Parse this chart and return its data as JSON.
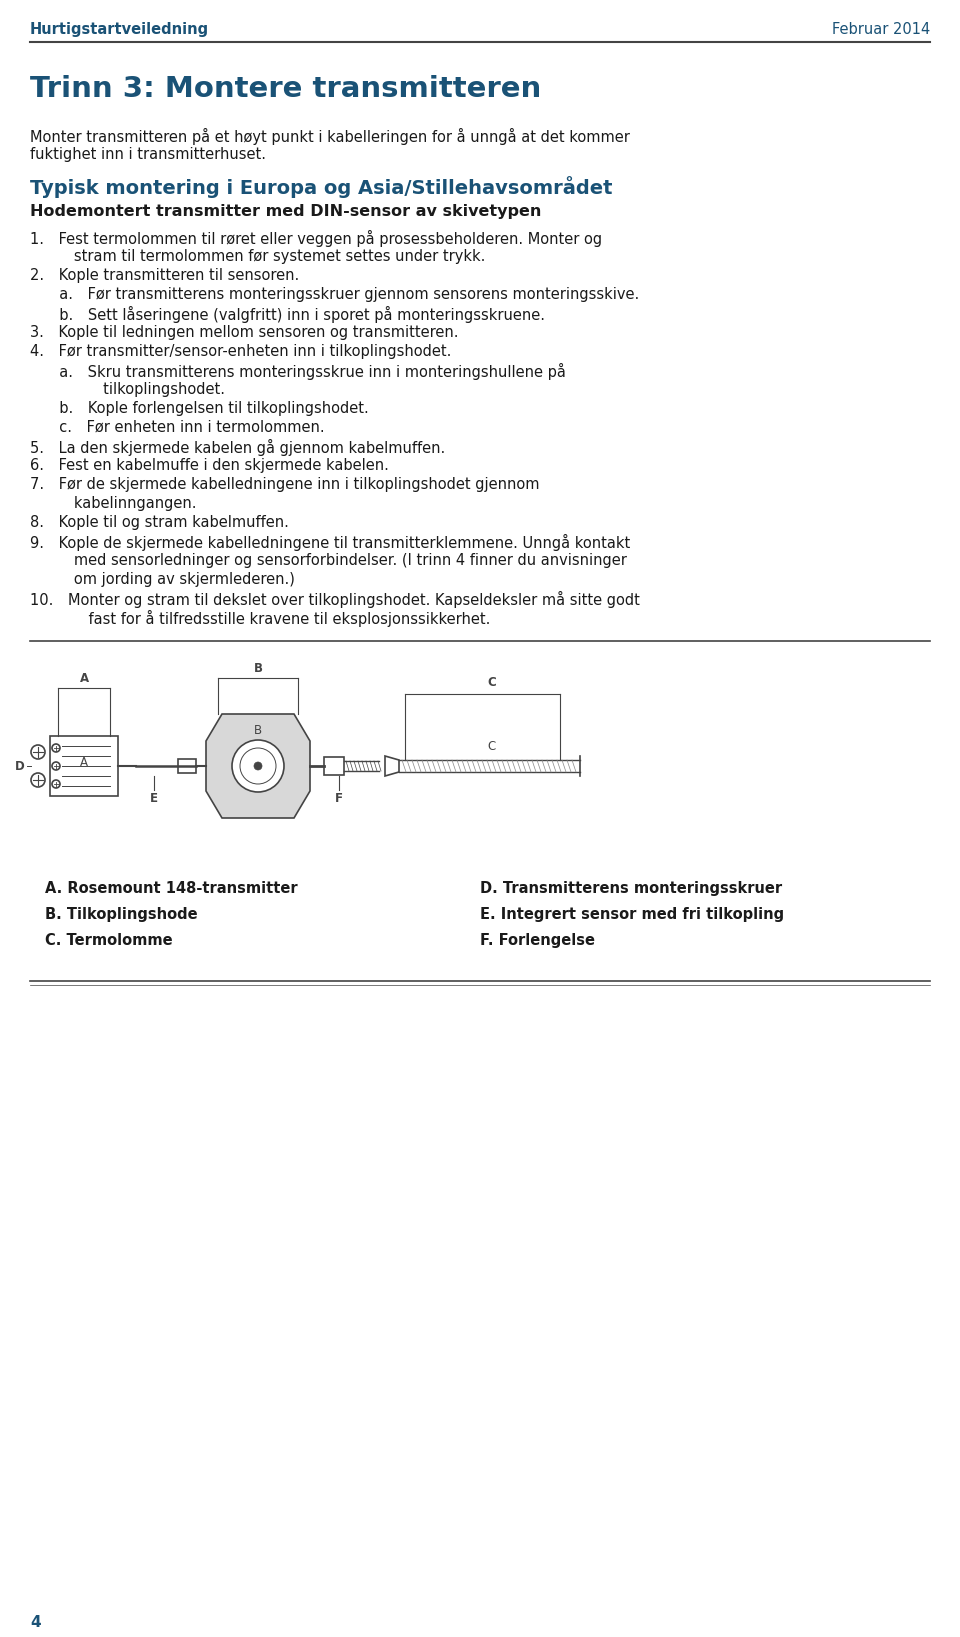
{
  "title_left": "Hurtigstartveiledning",
  "title_right": "Februar 2014",
  "page_number": "4",
  "main_title": "Trinn 3: Montere transmitteren",
  "intro_text": "Monter transmitteren på et høyt punkt i kabelleringen for å unngå at det kommer\nfuktighet inn i transmitterhuset.",
  "section_title": "Typisk montering i Europa og Asia/Stillehavsområdet",
  "subsection_title": "Hodemontert transmitter med DIN-sensor av skivetypen",
  "body_lines": [
    "1. Fest termolommen til røret eller veggen på prosessbeholderen. Monter og",
    "   stram til termolommen før systemet settes under trykk.",
    "2. Kople transmitteren til sensoren.",
    "  a. Før transmitterens monteringsskruer gjennom sensorens monteringsskive.",
    "  b. Sett låseringene (valgfritt) inn i sporet på monteringsskruene.",
    "3. Kople til ledningen mellom sensoren og transmitteren.",
    "4. Før transmitter/sensor-enheten inn i tilkoplingshodet.",
    "  a. Skru transmitterens monteringsskrue inn i monteringshullene på",
    "     tilkoplingshodet.",
    "  b. Kople forlengelsen til tilkoplingshodet.",
    "  c. Før enheten inn i termolommen.",
    "5. La den skjermede kabelen gå gjennom kabelmuffen.",
    "6. Fest en kabelmuffe i den skjermede kabelen.",
    "7. Før de skjermede kabelledningene inn i tilkoplingshodet gjennom",
    "   kabelinngangen.",
    "8. Kople til og stram kabelmuffen.",
    "9. Kople de skjermede kabelledningene til transmitterklemmene. Unngå kontakt",
    "   med sensorledninger og sensorforbindelser. (I trinn 4 finner du anvisninger",
    "   om jording av skjermlederen.)",
    "10. Monter og stram til dekslet over tilkoplingshodet. Kapseldeksler må sitte godt",
    "    fast for å tilfredsstille kravene til eksplosjonssikkerhet."
  ],
  "caption_lines": [
    [
      "A. Rosemount 148-transmitter",
      "D. Transmitterens monteringsskruer"
    ],
    [
      "B. Tilkoplingshode",
      "E. Integrert sensor med fri tilkopling"
    ],
    [
      "C. Termolomme",
      "F. Forlengelse"
    ]
  ],
  "header_color": "#1a5276",
  "title_color": "#1a5276",
  "section_color": "#1a5276",
  "text_color": "#1a1a1a",
  "bg_color": "#ffffff",
  "line_color": "#555555"
}
